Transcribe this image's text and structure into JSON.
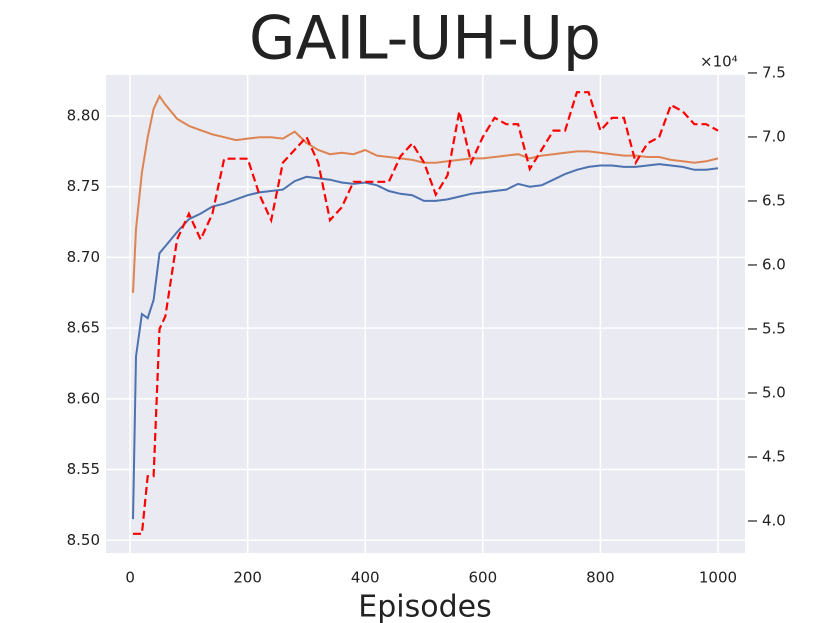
{
  "chart_data": {
    "type": "line",
    "title": "GAIL-UH-Up",
    "xlabel": "Episodes",
    "y2_offset_label": "×10⁴",
    "x": [
      5,
      10,
      20,
      30,
      40,
      50,
      60,
      80,
      100,
      120,
      140,
      160,
      180,
      200,
      220,
      240,
      260,
      280,
      300,
      320,
      340,
      360,
      380,
      400,
      420,
      440,
      460,
      480,
      500,
      520,
      540,
      560,
      580,
      600,
      620,
      640,
      660,
      680,
      700,
      720,
      740,
      760,
      780,
      800,
      820,
      840,
      860,
      880,
      900,
      920,
      940,
      960,
      980,
      1000
    ],
    "series": [
      {
        "color": "#4c72b0",
        "dashed": false,
        "values": [
          8.515,
          8.63,
          8.66,
          8.657,
          8.67,
          8.703,
          8.708,
          8.718,
          8.727,
          8.731,
          8.736,
          8.738,
          8.741,
          8.744,
          8.746,
          8.747,
          8.748,
          8.754,
          8.757,
          8.756,
          8.755,
          8.753,
          8.752,
          8.753,
          8.751,
          8.747,
          8.745,
          8.744,
          8.74,
          8.74,
          8.741,
          8.743,
          8.745,
          8.746,
          8.747,
          8.748,
          8.752,
          8.75,
          8.751,
          8.755,
          8.759,
          8.762,
          8.764,
          8.765,
          8.765,
          8.764,
          8.764,
          8.765,
          8.766,
          8.765,
          8.764,
          8.762,
          8.762,
          8.763
        ]
      },
      {
        "color": "#dd8452",
        "dashed": false,
        "values": [
          8.675,
          8.72,
          8.76,
          8.785,
          8.805,
          8.814,
          8.808,
          8.798,
          8.793,
          8.79,
          8.787,
          8.785,
          8.783,
          8.784,
          8.785,
          8.785,
          8.784,
          8.789,
          8.781,
          8.776,
          8.773,
          8.774,
          8.773,
          8.776,
          8.772,
          8.771,
          8.77,
          8.769,
          8.767,
          8.767,
          8.768,
          8.769,
          8.77,
          8.77,
          8.771,
          8.772,
          8.773,
          8.77,
          8.772,
          8.773,
          8.774,
          8.775,
          8.775,
          8.774,
          8.773,
          8.772,
          8.772,
          8.771,
          8.771,
          8.769,
          8.768,
          8.767,
          8.768,
          8.77
        ]
      },
      {
        "color": "#ff0000",
        "dashed": true,
        "axis": "y2",
        "values": [
          3.9,
          3.9,
          3.9,
          4.35,
          4.35,
          5.5,
          5.6,
          6.2,
          6.4,
          6.2,
          6.4,
          6.83,
          6.83,
          6.83,
          6.55,
          6.35,
          6.8,
          6.9,
          7.0,
          6.8,
          6.35,
          6.45,
          6.65,
          6.65,
          6.65,
          6.65,
          6.85,
          6.95,
          6.8,
          6.55,
          6.7,
          7.2,
          6.8,
          7.0,
          7.15,
          7.1,
          7.1,
          6.75,
          6.9,
          7.05,
          7.05,
          7.35,
          7.35,
          7.05,
          7.15,
          7.15,
          6.8,
          6.95,
          7.0,
          7.25,
          7.2,
          7.1,
          7.1,
          7.05
        ]
      }
    ],
    "xlim": [
      -41,
      1046
    ],
    "xticks": [
      0,
      200,
      400,
      600,
      800,
      1000
    ],
    "ylim": [
      8.491,
      8.829
    ],
    "yticks": [
      {
        "value": 8.5,
        "label": "8.50"
      },
      8.55,
      {
        "value": 8.6,
        "label": "8.60"
      },
      8.65,
      {
        "value": 8.7,
        "label": "8.70"
      },
      8.75,
      {
        "value": 8.8,
        "label": "8.80"
      }
    ],
    "y2lim": [
      3.75,
      7.484
    ],
    "y2ticks": [
      {
        "value": 4,
        "label": "4.0"
      },
      4.5,
      {
        "value": 5,
        "label": "5.0"
      },
      5.5,
      {
        "value": 6,
        "label": "6.0"
      },
      6.5,
      {
        "value": 7,
        "label": "7.0"
      },
      7.5
    ],
    "grid": true,
    "background": "#eaeaf2"
  }
}
